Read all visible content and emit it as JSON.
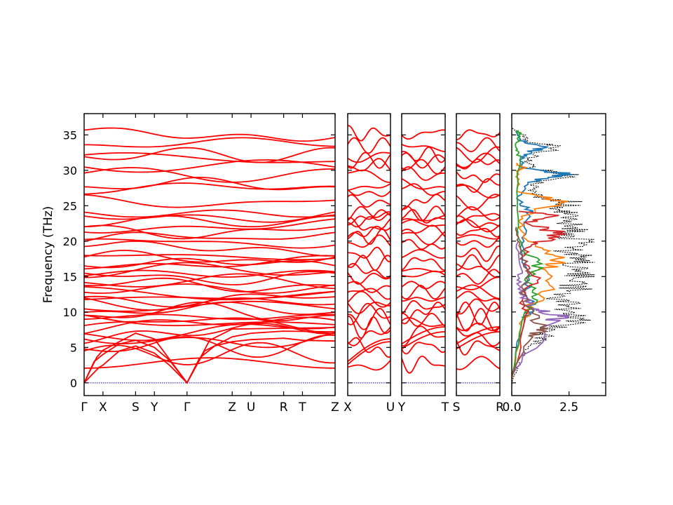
{
  "chart_data": {
    "type": "line",
    "ylabel": "Frequency (THz)",
    "ylim": [
      -1.8,
      38
    ],
    "yticks": [
      0,
      5,
      10,
      15,
      20,
      25,
      30,
      35
    ],
    "band_color": "#ff0000",
    "zero_line_color": "#0000cc",
    "panels": [
      {
        "labels": [
          "Γ",
          "X",
          "S",
          "Y",
          "Γ",
          "Z",
          "U",
          "R",
          "T",
          "Z"
        ],
        "positions": [
          0,
          0.075,
          0.205,
          0.28,
          0.41,
          0.59,
          0.665,
          0.795,
          0.87,
          1.0
        ]
      },
      {
        "labels": [
          "X",
          "U"
        ],
        "positions": [
          0,
          1
        ]
      },
      {
        "labels": [
          "Y",
          "T"
        ],
        "positions": [
          0,
          1
        ]
      },
      {
        "labels": [
          "S",
          "R"
        ],
        "positions": [
          0,
          1
        ]
      }
    ],
    "dos": {
      "xticks": [
        0.0,
        2.5
      ],
      "xtick_labels": [
        "0.0",
        "2.5"
      ],
      "xlim": [
        0,
        4.1
      ],
      "total_style": "dotted-black",
      "series_colors": [
        "#1f77b4",
        "#ff7f0e",
        "#2ca02c",
        "#d62728",
        "#9467bd",
        "#8c564b"
      ],
      "total": [
        [
          0,
          -0.5
        ],
        [
          0.05,
          0.5
        ],
        [
          0.3,
          2
        ],
        [
          0.5,
          3.5
        ],
        [
          0.9,
          5
        ],
        [
          1.5,
          5.8
        ],
        [
          1.9,
          6.5
        ],
        [
          1.5,
          7.2
        ],
        [
          3.4,
          8.5
        ],
        [
          3.6,
          9.2
        ],
        [
          2.8,
          10
        ],
        [
          3.3,
          11
        ],
        [
          2.5,
          12
        ],
        [
          3.7,
          13
        ],
        [
          3.4,
          14
        ],
        [
          3.9,
          15
        ],
        [
          3.3,
          16
        ],
        [
          4.0,
          17
        ],
        [
          3.6,
          18
        ],
        [
          3.0,
          19
        ],
        [
          3.9,
          20
        ],
        [
          3.4,
          21
        ],
        [
          3.7,
          22
        ],
        [
          3.3,
          23
        ],
        [
          3.6,
          23.8
        ],
        [
          2.5,
          24.3
        ],
        [
          3.5,
          25.5
        ],
        [
          1.5,
          26.2
        ],
        [
          1.2,
          27.5
        ],
        [
          1.6,
          28.5
        ],
        [
          3.7,
          29.4
        ],
        [
          1.5,
          30.2
        ],
        [
          0.9,
          31
        ],
        [
          1.2,
          32
        ],
        [
          2.7,
          33.3
        ],
        [
          1.0,
          34
        ],
        [
          0.6,
          35
        ],
        [
          0.3,
          35.5
        ],
        [
          0,
          36
        ]
      ],
      "series": [
        [
          [
            0,
            0.5
          ],
          [
            0.6,
            9
          ],
          [
            1.1,
            10
          ],
          [
            0.9,
            13
          ],
          [
            0.8,
            17
          ],
          [
            0.6,
            20
          ],
          [
            1.1,
            24
          ],
          [
            0.3,
            26
          ],
          [
            0.8,
            28.3
          ],
          [
            3.3,
            29.4
          ],
          [
            0.6,
            30.3
          ],
          [
            0.5,
            31.3
          ],
          [
            0.9,
            32.5
          ],
          [
            1.9,
            33.3
          ],
          [
            0.5,
            34.2
          ],
          [
            0.2,
            35.5
          ]
        ],
        [
          [
            0,
            0.5
          ],
          [
            0.5,
            8
          ],
          [
            1.2,
            11
          ],
          [
            2.1,
            13.5
          ],
          [
            1.9,
            16
          ],
          [
            2.7,
            17.5
          ],
          [
            1.5,
            19
          ],
          [
            0.6,
            21
          ],
          [
            0.5,
            23.5
          ],
          [
            2.8,
            25.6
          ],
          [
            0.4,
            27
          ],
          [
            0.3,
            29.8
          ],
          [
            0.7,
            30.3
          ],
          [
            0.2,
            31
          ]
        ],
        [
          [
            0,
            1
          ],
          [
            0.8,
            10
          ],
          [
            1.3,
            12.2
          ],
          [
            0.9,
            14.5
          ],
          [
            1.6,
            16.8
          ],
          [
            0.5,
            19
          ],
          [
            0.3,
            22
          ],
          [
            0.4,
            32
          ],
          [
            0.2,
            33.3
          ],
          [
            0.5,
            35
          ],
          [
            0.3,
            35.6
          ]
        ],
        [
          [
            0,
            1
          ],
          [
            1.0,
            9
          ],
          [
            0.5,
            12
          ],
          [
            1.4,
            14.8
          ],
          [
            0.6,
            17.5
          ],
          [
            1.1,
            19.5
          ],
          [
            3.0,
            21
          ],
          [
            0.8,
            22.5
          ],
          [
            2.3,
            23.8
          ],
          [
            0.3,
            24.2
          ]
        ],
        [
          [
            0,
            1
          ],
          [
            2.3,
            8.8
          ],
          [
            2.8,
            9.5
          ],
          [
            1.3,
            10.5
          ],
          [
            0.7,
            12
          ],
          [
            0.4,
            14
          ],
          [
            0.5,
            16
          ],
          [
            0.3,
            20
          ]
        ],
        [
          [
            0,
            1
          ],
          [
            1.1,
            6.5
          ],
          [
            1.8,
            7.8
          ],
          [
            0.9,
            10.5
          ],
          [
            0.6,
            13
          ],
          [
            0.8,
            16
          ],
          [
            0.5,
            19
          ],
          [
            0.2,
            22
          ]
        ]
      ]
    }
  }
}
